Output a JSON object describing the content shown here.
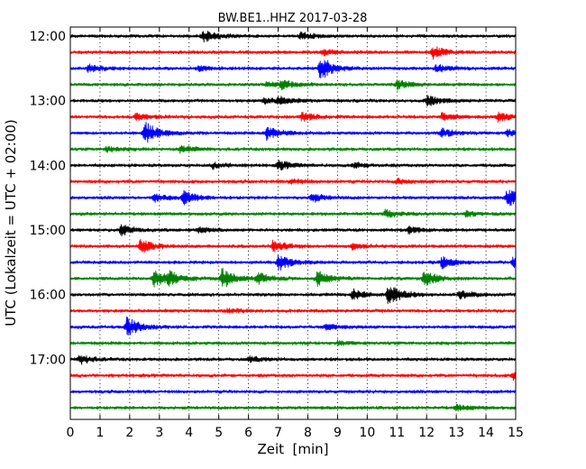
{
  "chart_data": {
    "type": "line",
    "title": "BW.BE1..HHZ 2017-03-28",
    "xlabel": "Zeit  [min]",
    "ylabel": "UTC (Lokalzeit = UTC + 02:00)",
    "xlim": [
      0,
      15
    ],
    "x_ticks": [
      "0",
      "1",
      "2",
      "3",
      "4",
      "5",
      "6",
      "7",
      "8",
      "9",
      "10",
      "11",
      "12",
      "13",
      "14",
      "15"
    ],
    "y_ticks": [
      "12:00",
      "13:00",
      "14:00",
      "15:00",
      "16:00",
      "17:00"
    ],
    "grid": true,
    "legend": "none",
    "trace_colors": [
      "#000000",
      "#ff0000",
      "#0000ff",
      "#008000"
    ],
    "traces": [
      {
        "start": "12:00",
        "events": [
          [
            4.45,
            7
          ],
          [
            7.75,
            4
          ]
        ]
      },
      {
        "start": "12:15",
        "events": [
          [
            12.2,
            7
          ],
          [
            8.5,
            3
          ]
        ]
      },
      {
        "start": "12:30",
        "events": [
          [
            8.4,
            14
          ],
          [
            0.6,
            4
          ],
          [
            12.3,
            4
          ],
          [
            4.3,
            3
          ]
        ]
      },
      {
        "start": "12:45",
        "events": [
          [
            11.0,
            5
          ],
          [
            6.6,
            3
          ],
          [
            7.1,
            4
          ]
        ]
      },
      {
        "start": "13:00",
        "events": [
          [
            12.0,
            6
          ],
          [
            7.0,
            4
          ],
          [
            6.5,
            3
          ]
        ]
      },
      {
        "start": "13:15",
        "events": [
          [
            2.2,
            4
          ],
          [
            7.8,
            5
          ],
          [
            12.5,
            4
          ],
          [
            14.4,
            5
          ]
        ]
      },
      {
        "start": "13:30",
        "events": [
          [
            2.5,
            13
          ],
          [
            6.6,
            8
          ],
          [
            12.5,
            5
          ],
          [
            14.7,
            4
          ]
        ]
      },
      {
        "start": "13:45",
        "events": [
          [
            3.7,
            4
          ],
          [
            1.2,
            3
          ]
        ]
      },
      {
        "start": "14:00",
        "events": [
          [
            7.0,
            5
          ],
          [
            4.8,
            3
          ],
          [
            9.5,
            3
          ]
        ]
      },
      {
        "start": "14:15",
        "events": [
          [
            11.0,
            3
          ],
          [
            7.4,
            3
          ]
        ]
      },
      {
        "start": "14:30",
        "events": [
          [
            3.8,
            8
          ],
          [
            14.7,
            10
          ],
          [
            8.1,
            5
          ],
          [
            2.8,
            4
          ]
        ]
      },
      {
        "start": "14:45",
        "events": [
          [
            10.6,
            4
          ],
          [
            13.3,
            3
          ]
        ]
      },
      {
        "start": "15:00",
        "events": [
          [
            1.7,
            6
          ],
          [
            11.4,
            4
          ],
          [
            4.3,
            3
          ]
        ]
      },
      {
        "start": "15:15",
        "events": [
          [
            2.35,
            8
          ],
          [
            6.8,
            6
          ],
          [
            9.5,
            3
          ]
        ]
      },
      {
        "start": "15:30",
        "events": [
          [
            7.0,
            9
          ],
          [
            12.5,
            6
          ],
          [
            14.9,
            5
          ]
        ]
      },
      {
        "start": "15:45",
        "events": [
          [
            2.8,
            10
          ],
          [
            5.1,
            11
          ],
          [
            8.3,
            8
          ],
          [
            11.9,
            9
          ],
          [
            3.3,
            7
          ],
          [
            6.3,
            6
          ]
        ]
      },
      {
        "start": "16:00",
        "events": [
          [
            10.7,
            13
          ],
          [
            9.5,
            6
          ],
          [
            13.1,
            5
          ]
        ]
      },
      {
        "start": "16:15",
        "events": [
          [
            5.3,
            2
          ]
        ]
      },
      {
        "start": "16:30",
        "events": [
          [
            1.9,
            11
          ],
          [
            8.6,
            3
          ]
        ]
      },
      {
        "start": "16:45",
        "events": [
          [
            9.0,
            2
          ]
        ]
      },
      {
        "start": "17:00",
        "events": [
          [
            0.3,
            5
          ],
          [
            6.0,
            3
          ]
        ]
      },
      {
        "start": "17:15",
        "events": [
          [
            14.9,
            4
          ]
        ]
      },
      {
        "start": "17:30",
        "events": []
      },
      {
        "start": "17:45",
        "events": [
          [
            13.0,
            3
          ]
        ]
      }
    ]
  }
}
